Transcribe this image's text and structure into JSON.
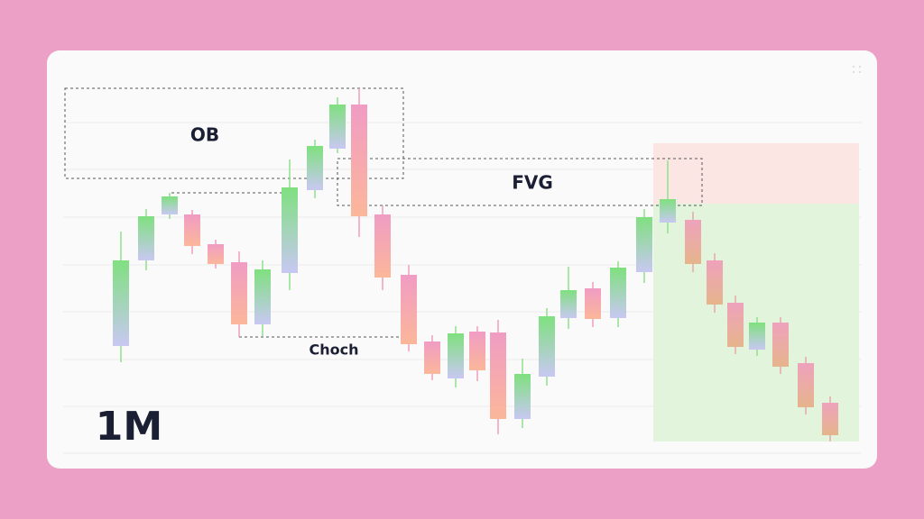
{
  "annotations": {
    "order_block": "OB",
    "fair_value_gap": "FVG",
    "change_of_character": "Choch"
  },
  "timeframe": "1M"
}
